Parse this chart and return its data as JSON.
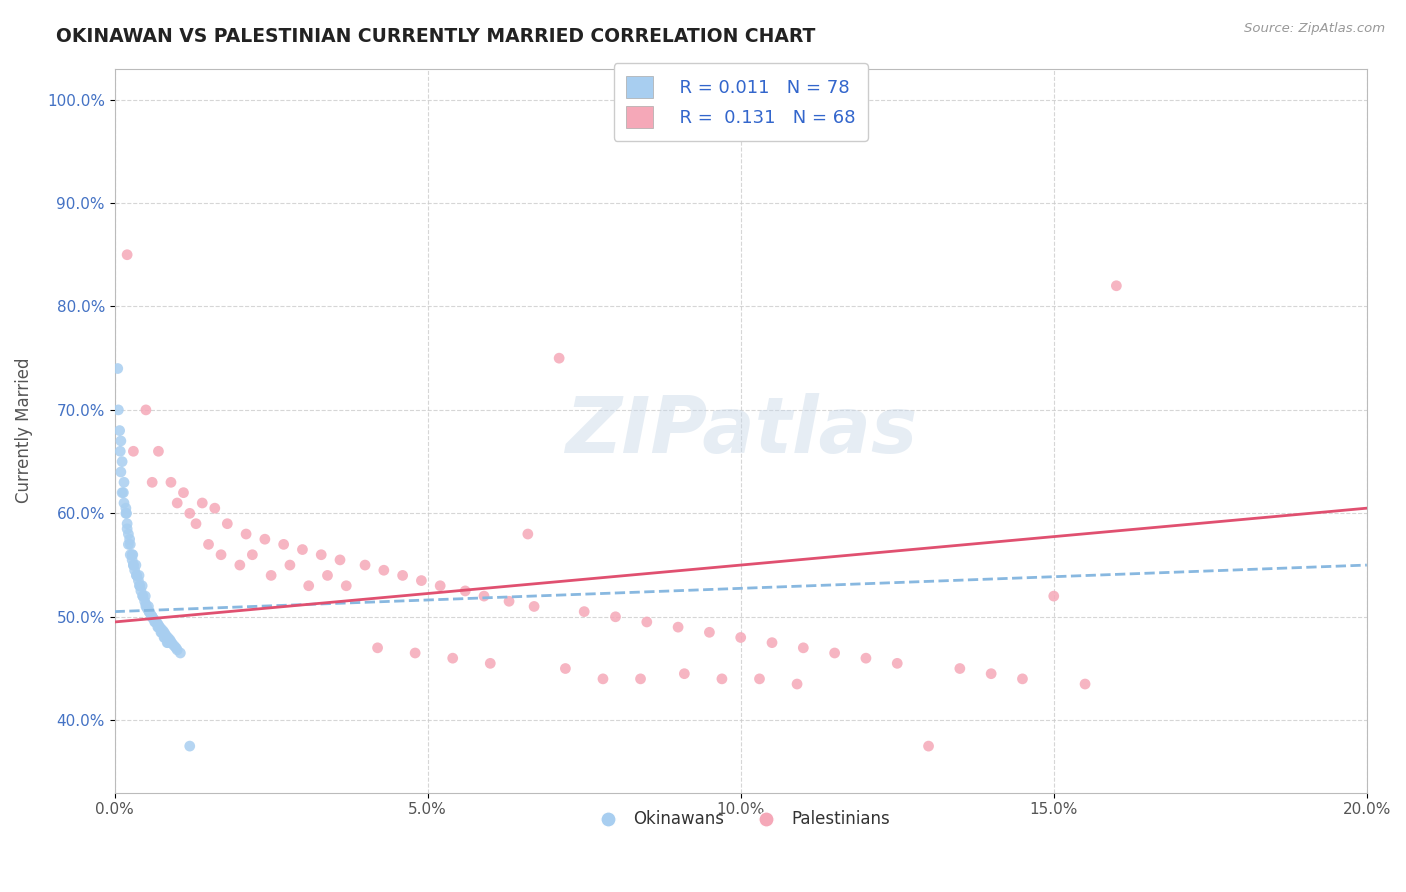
{
  "title": "OKINAWAN VS PALESTINIAN CURRENTLY MARRIED CORRELATION CHART",
  "source_text": "Source: ZipAtlas.com",
  "ylabel": "Currently Married",
  "xlim": [
    0.0,
    20.0
  ],
  "ylim": [
    33.0,
    103.0
  ],
  "x_ticks": [
    0.0,
    5.0,
    10.0,
    15.0,
    20.0
  ],
  "x_tick_labels": [
    "0.0%",
    "5.0%",
    "10.0%",
    "15.0%",
    "20.0%"
  ],
  "y_ticks": [
    40.0,
    50.0,
    60.0,
    70.0,
    80.0,
    90.0,
    100.0
  ],
  "y_tick_labels": [
    "40.0%",
    "50.0%",
    "60.0%",
    "70.0%",
    "80.0%",
    "90.0%",
    "100.0%"
  ],
  "okinawan_color": "#a8cef0",
  "palestinian_color": "#f5a8b8",
  "okinawan_line_color": "#88b8e0",
  "palestinian_line_color": "#e05070",
  "legend_label1": "Okinawans",
  "legend_label2": "Palestinians",
  "watermark_text": "ZIPatlas",
  "background_color": "#ffffff",
  "grid_color": "#cccccc",
  "okinawan_x": [
    0.05,
    0.08,
    0.1,
    0.12,
    0.15,
    0.18,
    0.2,
    0.22,
    0.25,
    0.28,
    0.3,
    0.32,
    0.35,
    0.38,
    0.4,
    0.42,
    0.45,
    0.48,
    0.5,
    0.52,
    0.55,
    0.58,
    0.6,
    0.62,
    0.65,
    0.68,
    0.7,
    0.72,
    0.75,
    0.78,
    0.8,
    0.82,
    0.85,
    0.88,
    0.9,
    0.92,
    0.95,
    0.98,
    1.0,
    1.05,
    0.1,
    0.12,
    0.15,
    0.18,
    0.2,
    0.22,
    0.25,
    0.28,
    0.3,
    0.35,
    0.4,
    0.45,
    0.5,
    0.55,
    0.6,
    0.65,
    0.7,
    0.75,
    0.8,
    0.85,
    0.06,
    0.09,
    0.14,
    0.19,
    0.24,
    0.29,
    0.34,
    0.39,
    0.44,
    0.49,
    0.54,
    0.59,
    0.64,
    0.69,
    0.74,
    0.79,
    0.84,
    1.2
  ],
  "okinawan_y": [
    74.0,
    68.0,
    64.0,
    62.0,
    61.0,
    60.0,
    58.5,
    57.0,
    56.0,
    55.5,
    55.0,
    54.5,
    54.0,
    53.5,
    53.0,
    52.5,
    52.0,
    51.5,
    51.0,
    50.8,
    50.5,
    50.2,
    50.0,
    49.8,
    49.6,
    49.4,
    49.2,
    49.0,
    48.8,
    48.6,
    48.4,
    48.2,
    48.0,
    47.8,
    47.6,
    47.4,
    47.2,
    47.0,
    46.8,
    46.5,
    67.0,
    65.0,
    63.0,
    60.5,
    59.0,
    58.0,
    57.0,
    56.0,
    55.0,
    54.0,
    53.0,
    52.0,
    51.2,
    50.5,
    50.0,
    49.5,
    49.0,
    48.5,
    48.0,
    47.5,
    70.0,
    66.0,
    62.0,
    60.0,
    57.5,
    56.0,
    55.0,
    54.0,
    53.0,
    52.0,
    51.0,
    50.0,
    49.5,
    49.0,
    48.5,
    48.0,
    47.5,
    37.5
  ],
  "palestinian_x": [
    0.2,
    0.5,
    0.7,
    0.9,
    1.1,
    1.4,
    1.6,
    1.8,
    2.1,
    2.4,
    2.7,
    3.0,
    3.3,
    3.6,
    4.0,
    4.3,
    4.6,
    4.9,
    5.2,
    5.6,
    5.9,
    6.3,
    6.7,
    7.1,
    7.5,
    8.0,
    8.5,
    9.0,
    9.5,
    10.0,
    10.5,
    11.0,
    11.5,
    12.0,
    12.5,
    13.0,
    13.5,
    14.0,
    14.5,
    15.0,
    15.5,
    16.0,
    1.2,
    1.5,
    2.0,
    2.5,
    3.1,
    3.7,
    4.2,
    4.8,
    5.4,
    6.0,
    6.6,
    7.2,
    7.8,
    8.4,
    9.1,
    9.7,
    10.3,
    10.9,
    0.3,
    0.6,
    1.0,
    1.3,
    1.7,
    2.2,
    2.8,
    3.4
  ],
  "palestinian_y": [
    85.0,
    70.0,
    66.0,
    63.0,
    62.0,
    61.0,
    60.5,
    59.0,
    58.0,
    57.5,
    57.0,
    56.5,
    56.0,
    55.5,
    55.0,
    54.5,
    54.0,
    53.5,
    53.0,
    52.5,
    52.0,
    51.5,
    51.0,
    75.0,
    50.5,
    50.0,
    49.5,
    49.0,
    48.5,
    48.0,
    47.5,
    47.0,
    46.5,
    46.0,
    45.5,
    37.5,
    45.0,
    44.5,
    44.0,
    52.0,
    43.5,
    82.0,
    60.0,
    57.0,
    55.0,
    54.0,
    53.0,
    53.0,
    47.0,
    46.5,
    46.0,
    45.5,
    58.0,
    45.0,
    44.0,
    44.0,
    44.5,
    44.0,
    44.0,
    43.5,
    66.0,
    63.0,
    61.0,
    59.0,
    56.0,
    56.0,
    55.0,
    54.0
  ]
}
